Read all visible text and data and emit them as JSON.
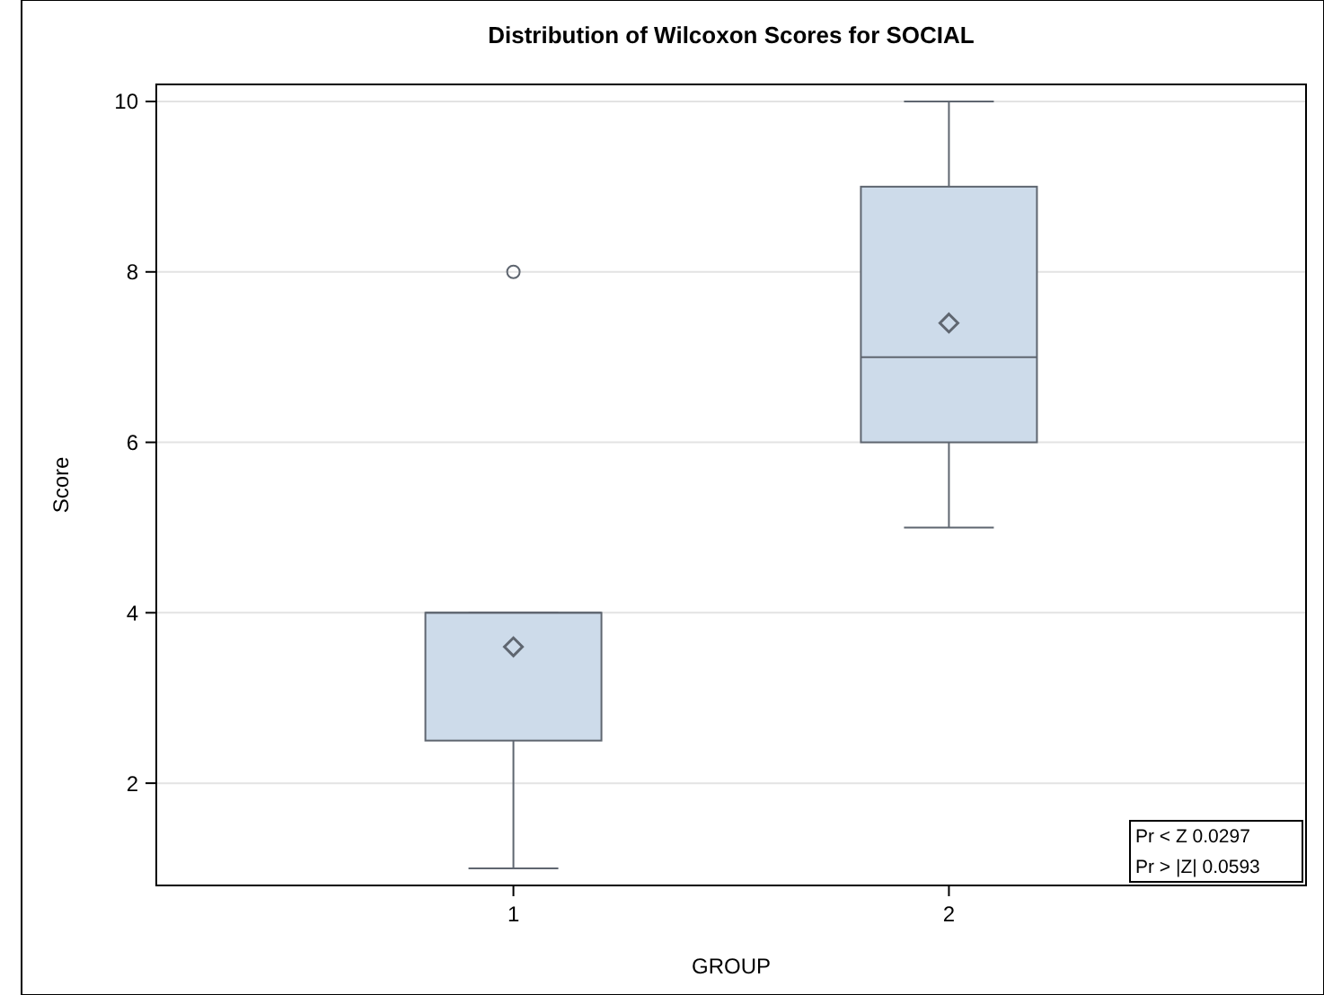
{
  "chart_data": {
    "type": "box",
    "title": "Distribution of Wilcoxon Scores for SOCIAL",
    "xlabel": "GROUP",
    "ylabel": "Score",
    "categories": [
      "1",
      "2"
    ],
    "boxes": [
      {
        "low": 1,
        "q1": 2.5,
        "median": 4,
        "q3": 4,
        "high": 4,
        "mean": 3.6,
        "outliers": [
          8
        ]
      },
      {
        "low": 5,
        "q1": 6,
        "median": 7,
        "q3": 9,
        "high": 10,
        "mean": 7.4
      }
    ],
    "color": "#cddbea",
    "ylim": [
      0.8,
      10.2
    ],
    "yticks": [
      2,
      4,
      6,
      8,
      10
    ],
    "grid": "y",
    "marker": "diamond",
    "annotations": [
      "Pr < Z 0.0297",
      "Pr > |Z| 0.0593"
    ]
  }
}
